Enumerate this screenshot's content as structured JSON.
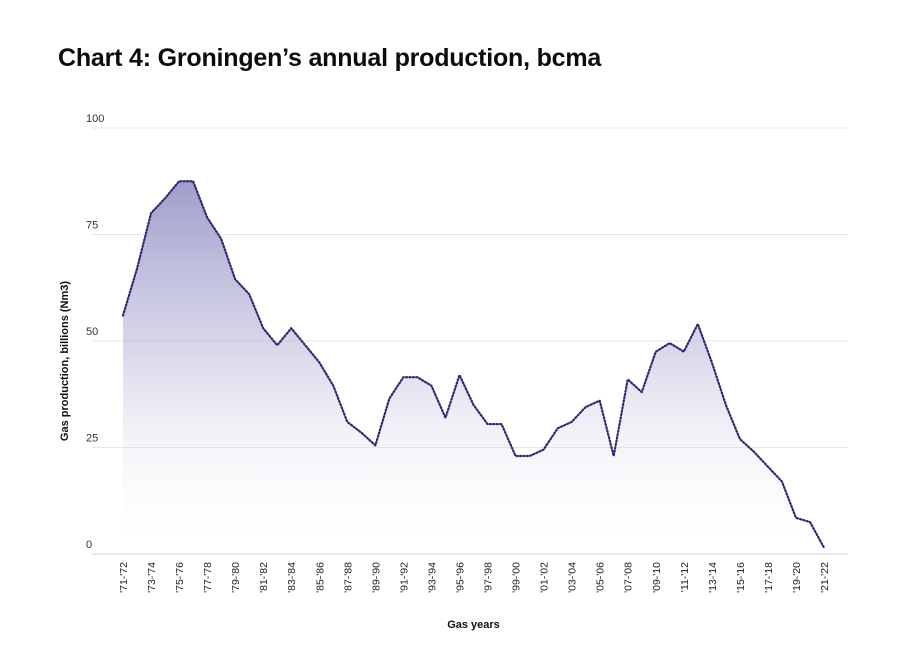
{
  "title": "Chart 4: Groningen’s annual production, bcma",
  "colors": {
    "line": "#2e2a6e",
    "fill": "#bdbbd9",
    "grid": "#e6e6e6",
    "axis": "#d0d0d0"
  },
  "chart_data": {
    "type": "area",
    "xlabel": "Gas years",
    "ylabel": "Gas production, billions (Nm3)",
    "ylim": [
      0,
      100
    ],
    "yticks": [
      0,
      25,
      50,
      75,
      100
    ],
    "grid": true,
    "x_tick_labels": [
      "'71-'72",
      "'73-'74",
      "'75-'76",
      "'77-'78",
      "'79-'80",
      "'81-'82",
      "'83-'84",
      "'85-'86",
      "'87-'88",
      "'89-'90",
      "'91-'92",
      "'93-'94",
      "'95-'96",
      "'97-'98",
      "'99-'00",
      "'01-'02",
      "'03-'04",
      "'05-'06",
      "'07-'08",
      "'09-'10",
      "'11-'12",
      "'13-'14",
      "'15-'16",
      "'17-'18",
      "'19-'20",
      "'21-'22"
    ],
    "x": [
      1971,
      1972,
      1973,
      1974,
      1975,
      1976,
      1977,
      1978,
      1979,
      1980,
      1981,
      1982,
      1983,
      1984,
      1985,
      1986,
      1987,
      1988,
      1989,
      1990,
      1991,
      1992,
      1993,
      1994,
      1995,
      1996,
      1997,
      1998,
      1999,
      2000,
      2001,
      2002,
      2003,
      2004,
      2005,
      2006,
      2007,
      2008,
      2009,
      2010,
      2011,
      2012,
      2013,
      2014,
      2015,
      2016,
      2017,
      2018,
      2019,
      2020,
      2021
    ],
    "series": [
      {
        "values": [
          56,
          67,
          80,
          83.5,
          87.5,
          87.5,
          79,
          74,
          64.5,
          61,
          53,
          49,
          53,
          49,
          45,
          39.5,
          31,
          28.5,
          25.5,
          36.5,
          41.5,
          41.5,
          39.5,
          32,
          42,
          35,
          30.5,
          30.5,
          23,
          23,
          24.5,
          29.5,
          31,
          34.5,
          36,
          23,
          41,
          38,
          47.5,
          49.5,
          47.5,
          54,
          45,
          35,
          27,
          24,
          20.5,
          17,
          8.5,
          7.5,
          1.5
        ]
      }
    ]
  }
}
